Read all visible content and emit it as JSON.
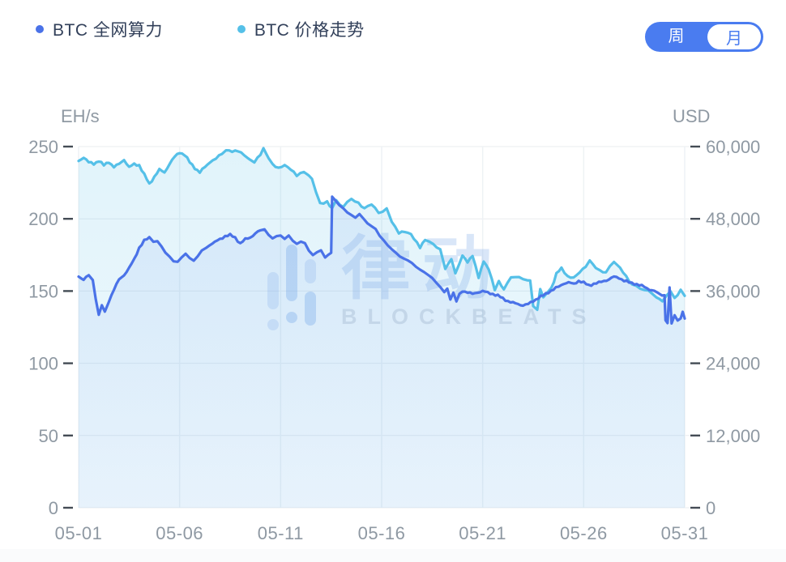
{
  "header": {
    "legend": [
      {
        "label": "BTC 全网算力",
        "color": "#4a72e8"
      },
      {
        "label": "BTC 价格走势",
        "color": "#55c0e8"
      }
    ],
    "toggle": {
      "options": [
        "周",
        "月"
      ],
      "selected": "周",
      "color": "#4a7cf0"
    }
  },
  "watermark": {
    "cjk": "律动",
    "latin": "BLOCKBEATS"
  },
  "colors": {
    "hashrate_line": "#4a72e8",
    "price_line": "#55c0e8",
    "axis_text": "#8f99a3",
    "legend_text": "#32405a",
    "grid_h": "#e9ecef",
    "grid_v": "#eef2f5",
    "tick_mark": "#444c55"
  },
  "chart_data": {
    "type": "line",
    "title": "",
    "x_ticks": [
      "05-01",
      "05-06",
      "05-11",
      "05-16",
      "05-21",
      "05-26",
      "05-31"
    ],
    "x_tick_days": [
      0,
      5,
      10,
      15,
      20,
      25,
      30
    ],
    "x_range_days": [
      0,
      30
    ],
    "grid": true,
    "legend_position": "top",
    "left_axis": {
      "label": "EH/s",
      "ticks": [
        250,
        200,
        150,
        100,
        50,
        0
      ],
      "range": [
        0,
        250
      ]
    },
    "right_axis": {
      "label": "USD",
      "ticks": [
        60000,
        48000,
        36000,
        24000,
        12000,
        0
      ],
      "range": [
        0,
        60000
      ]
    },
    "series": [
      {
        "name": "BTC 价格走势",
        "axis": "right",
        "unit": "USD",
        "color": "#55c0e8",
        "area": true,
        "points": [
          [
            0,
            57600
          ],
          [
            0.25,
            58200
          ],
          [
            0.5,
            57400
          ],
          [
            0.75,
            57100
          ],
          [
            1,
            57600
          ],
          [
            1.25,
            56900
          ],
          [
            1.5,
            57400
          ],
          [
            1.75,
            56600
          ],
          [
            2,
            57100
          ],
          [
            2.25,
            57800
          ],
          [
            2.5,
            56600
          ],
          [
            2.75,
            57100
          ],
          [
            3,
            56900
          ],
          [
            3.25,
            55400
          ],
          [
            3.5,
            53800
          ],
          [
            3.75,
            55000
          ],
          [
            4,
            56200
          ],
          [
            4.25,
            55700
          ],
          [
            4.5,
            57100
          ],
          [
            4.75,
            58300
          ],
          [
            5,
            59000
          ],
          [
            5.25,
            58600
          ],
          [
            5.5,
            57400
          ],
          [
            5.75,
            56400
          ],
          [
            6,
            55700
          ],
          [
            6.25,
            56600
          ],
          [
            6.5,
            57400
          ],
          [
            6.8,
            58100
          ],
          [
            7.1,
            58900
          ],
          [
            7.3,
            59400
          ],
          [
            7.6,
            59200
          ],
          [
            7.9,
            59300
          ],
          [
            8.2,
            58600
          ],
          [
            8.5,
            57800
          ],
          [
            8.7,
            57400
          ],
          [
            9,
            58600
          ],
          [
            9.15,
            59700
          ],
          [
            9.4,
            58100
          ],
          [
            9.6,
            57000
          ],
          [
            9.9,
            56400
          ],
          [
            10.2,
            56900
          ],
          [
            10.5,
            56200
          ],
          [
            10.8,
            55200
          ],
          [
            11.15,
            55700
          ],
          [
            11.4,
            55200
          ],
          [
            11.55,
            54700
          ],
          [
            11.75,
            52300
          ],
          [
            11.95,
            50600
          ],
          [
            12.3,
            50900
          ],
          [
            12.55,
            49700
          ],
          [
            12.75,
            51100
          ],
          [
            13.1,
            49900
          ],
          [
            13.5,
            51400
          ],
          [
            13.85,
            50600
          ],
          [
            14.15,
            49700
          ],
          [
            14.5,
            50400
          ],
          [
            14.85,
            49000
          ],
          [
            15.25,
            49700
          ],
          [
            15.5,
            47500
          ],
          [
            15.85,
            45600
          ],
          [
            16.15,
            45800
          ],
          [
            16.45,
            45400
          ],
          [
            16.9,
            43200
          ],
          [
            17.15,
            44600
          ],
          [
            17.55,
            43700
          ],
          [
            17.9,
            43000
          ],
          [
            18.15,
            39600
          ],
          [
            18.45,
            41300
          ],
          [
            18.65,
            38900
          ],
          [
            19,
            42000
          ],
          [
            19.25,
            40800
          ],
          [
            19.5,
            41800
          ],
          [
            19.8,
            38200
          ],
          [
            20.05,
            41000
          ],
          [
            20.3,
            39600
          ],
          [
            20.6,
            36200
          ],
          [
            20.8,
            37700
          ],
          [
            21.05,
            36200
          ],
          [
            21.4,
            38400
          ],
          [
            21.8,
            38200
          ],
          [
            22.2,
            37900
          ],
          [
            22.35,
            37700
          ],
          [
            22.5,
            33600
          ],
          [
            22.7,
            32900
          ],
          [
            22.85,
            36200
          ],
          [
            23,
            35000
          ],
          [
            23.4,
            36500
          ],
          [
            23.65,
            38900
          ],
          [
            23.9,
            39800
          ],
          [
            24.2,
            38400
          ],
          [
            24.5,
            38200
          ],
          [
            24.8,
            39100
          ],
          [
            25.1,
            40100
          ],
          [
            25.3,
            41000
          ],
          [
            25.6,
            39800
          ],
          [
            25.8,
            39400
          ],
          [
            26.1,
            39100
          ],
          [
            26.3,
            40100
          ],
          [
            26.5,
            40800
          ],
          [
            26.8,
            39800
          ],
          [
            27.1,
            38400
          ],
          [
            27.4,
            37000
          ],
          [
            27.8,
            36500
          ],
          [
            28.2,
            36000
          ],
          [
            28.6,
            35000
          ],
          [
            28.9,
            34300
          ],
          [
            29.1,
            35300
          ],
          [
            29.3,
            36000
          ],
          [
            29.5,
            34800
          ],
          [
            29.8,
            36200
          ],
          [
            30,
            35200
          ]
        ]
      },
      {
        "name": "BTC 全网算力",
        "axis": "left",
        "unit": "EH/s",
        "color": "#4a72e8",
        "area": true,
        "points": [
          [
            0,
            160
          ],
          [
            0.25,
            158
          ],
          [
            0.5,
            161
          ],
          [
            0.7,
            158
          ],
          [
            0.85,
            144
          ],
          [
            1,
            134
          ],
          [
            1.15,
            140
          ],
          [
            1.3,
            136
          ],
          [
            1.5,
            143
          ],
          [
            1.75,
            151
          ],
          [
            2,
            158
          ],
          [
            2.25,
            161
          ],
          [
            2.5,
            166
          ],
          [
            2.75,
            172
          ],
          [
            3,
            180
          ],
          [
            3.25,
            185
          ],
          [
            3.5,
            187
          ],
          [
            3.7,
            184
          ],
          [
            3.9,
            185
          ],
          [
            4.1,
            181
          ],
          [
            4.3,
            176
          ],
          [
            4.5,
            174
          ],
          [
            4.7,
            171
          ],
          [
            4.9,
            170
          ],
          [
            5.1,
            173
          ],
          [
            5.3,
            176
          ],
          [
            5.5,
            173
          ],
          [
            5.7,
            171
          ],
          [
            5.9,
            174
          ],
          [
            6.1,
            178
          ],
          [
            6.3,
            180
          ],
          [
            6.5,
            182
          ],
          [
            6.75,
            184
          ],
          [
            7,
            186
          ],
          [
            7.25,
            188
          ],
          [
            7.5,
            189
          ],
          [
            7.75,
            187
          ],
          [
            8,
            183
          ],
          [
            8.25,
            186
          ],
          [
            8.5,
            187
          ],
          [
            8.75,
            190
          ],
          [
            9,
            192
          ],
          [
            9.2,
            193
          ],
          [
            9.4,
            189
          ],
          [
            9.6,
            186
          ],
          [
            9.8,
            188
          ],
          [
            10,
            189
          ],
          [
            10.2,
            186
          ],
          [
            10.4,
            188
          ],
          [
            10.6,
            185
          ],
          [
            10.8,
            183
          ],
          [
            11,
            184
          ],
          [
            11.2,
            183
          ],
          [
            11.4,
            178
          ],
          [
            11.6,
            175
          ],
          [
            11.8,
            177
          ],
          [
            12,
            178
          ],
          [
            12.2,
            173
          ],
          [
            12.35,
            175
          ],
          [
            12.5,
            176
          ],
          [
            12.55,
            215
          ],
          [
            12.7,
            213
          ],
          [
            12.9,
            210
          ],
          [
            13.1,
            207
          ],
          [
            13.3,
            204
          ],
          [
            13.5,
            203
          ],
          [
            13.7,
            201
          ],
          [
            13.9,
            203
          ],
          [
            14.1,
            200
          ],
          [
            14.3,
            197
          ],
          [
            14.5,
            195
          ],
          [
            14.7,
            193
          ],
          [
            14.9,
            188
          ],
          [
            15.1,
            185
          ],
          [
            15.3,
            182
          ],
          [
            15.5,
            179
          ],
          [
            15.7,
            176
          ],
          [
            15.9,
            174
          ],
          [
            16.1,
            173
          ],
          [
            16.3,
            171
          ],
          [
            16.5,
            169
          ],
          [
            16.7,
            167
          ],
          [
            16.9,
            165
          ],
          [
            17.1,
            163
          ],
          [
            17.3,
            161
          ],
          [
            17.5,
            159
          ],
          [
            17.7,
            156
          ],
          [
            17.9,
            153
          ],
          [
            18.1,
            149
          ],
          [
            18.25,
            152
          ],
          [
            18.4,
            144
          ],
          [
            18.55,
            149
          ],
          [
            18.7,
            143
          ],
          [
            18.85,
            148
          ],
          [
            19,
            150
          ],
          [
            19.25,
            149
          ],
          [
            19.5,
            148
          ],
          [
            19.75,
            149
          ],
          [
            20,
            150
          ],
          [
            20.25,
            149
          ],
          [
            20.5,
            148
          ],
          [
            20.75,
            147
          ],
          [
            21,
            145
          ],
          [
            21.25,
            143
          ],
          [
            21.5,
            142
          ],
          [
            21.75,
            141
          ],
          [
            22,
            140
          ],
          [
            22.25,
            141
          ],
          [
            22.5,
            143
          ],
          [
            22.75,
            145
          ],
          [
            23,
            147
          ],
          [
            23.25,
            149
          ],
          [
            23.5,
            151
          ],
          [
            23.75,
            153
          ],
          [
            24,
            155
          ],
          [
            24.25,
            156
          ],
          [
            24.5,
            155
          ],
          [
            24.75,
            157
          ],
          [
            25,
            156
          ],
          [
            25.25,
            154
          ],
          [
            25.5,
            155
          ],
          [
            25.75,
            156
          ],
          [
            26,
            157
          ],
          [
            26.25,
            158
          ],
          [
            26.5,
            160
          ],
          [
            26.75,
            159
          ],
          [
            27,
            157
          ],
          [
            27.25,
            156
          ],
          [
            27.5,
            155
          ],
          [
            27.75,
            154
          ],
          [
            28,
            153
          ],
          [
            28.25,
            151
          ],
          [
            28.5,
            150
          ],
          [
            28.75,
            148
          ],
          [
            29,
            147
          ],
          [
            29.05,
            130
          ],
          [
            29.15,
            128
          ],
          [
            29.25,
            152
          ],
          [
            29.35,
            128
          ],
          [
            29.5,
            133
          ],
          [
            29.65,
            130
          ],
          [
            29.8,
            131
          ],
          [
            29.9,
            136
          ],
          [
            30,
            131
          ]
        ]
      }
    ]
  }
}
